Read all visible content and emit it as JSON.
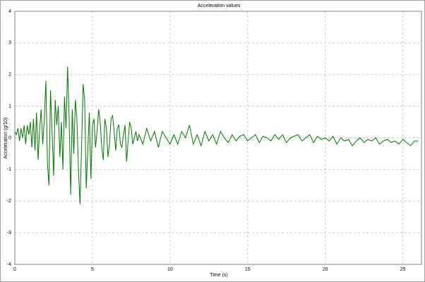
{
  "chart_data": {
    "type": "line",
    "title": "Acceleration values",
    "xlabel": "Time (s)",
    "ylabel": "Acceleration (g/10)",
    "x": [
      0,
      0.1,
      0.2,
      0.3,
      0.4,
      0.5,
      0.6,
      0.7,
      0.8,
      0.9,
      1,
      1.1,
      1.2,
      1.3,
      1.4,
      1.5,
      1.6,
      1.7,
      1.8,
      1.9,
      2,
      2.1,
      2.2,
      2.3,
      2.4,
      2.5,
      2.6,
      2.7,
      2.8,
      2.9,
      3,
      3.1,
      3.2,
      3.3,
      3.4,
      3.5,
      3.6,
      3.7,
      3.8,
      3.9,
      4,
      4.1,
      4.2,
      4.3,
      4.4,
      4.5,
      4.6,
      4.7,
      4.8,
      4.9,
      5,
      5.1,
      5.2,
      5.3,
      5.4,
      5.5,
      5.6,
      5.7,
      5.8,
      5.9,
      6,
      6.1,
      6.2,
      6.3,
      6.4,
      6.5,
      6.6,
      6.7,
      6.8,
      6.9,
      7,
      7.1,
      7.2,
      7.3,
      7.4,
      7.5,
      7.6,
      7.7,
      7.8,
      7.9,
      8,
      8.25,
      8.5,
      8.75,
      9,
      9.25,
      9.5,
      9.75,
      10,
      10.25,
      10.5,
      10.75,
      11,
      11.25,
      11.5,
      11.75,
      12,
      12.25,
      12.5,
      12.75,
      13,
      13.25,
      13.5,
      13.75,
      14,
      14.25,
      14.5,
      14.75,
      15,
      15.25,
      15.5,
      15.75,
      16,
      16.25,
      16.5,
      16.75,
      17,
      17.25,
      17.5,
      17.75,
      18,
      18.25,
      18.5,
      18.75,
      19,
      19.25,
      19.5,
      19.75,
      20,
      20.25,
      20.5,
      20.75,
      21,
      21.25,
      21.5,
      21.75,
      22,
      22.25,
      22.5,
      22.75,
      23,
      23.25,
      23.5,
      23.75,
      24,
      24.25,
      24.5,
      24.75,
      25,
      25.25,
      25.5,
      25.75,
      26
    ],
    "series": [
      {
        "name": "Acceleration",
        "color": "#007800",
        "values": [
          0.2,
          0.1,
          0.3,
          -0.1,
          0.3,
          0.0,
          0.4,
          -0.2,
          0.4,
          0.1,
          0.5,
          -0.3,
          0.6,
          -0.4,
          0.8,
          -0.7,
          0.3,
          0.9,
          -0.2,
          0.6,
          1.8,
          -0.8,
          -1.5,
          1.5,
          0.2,
          -1.2,
          1.2,
          0.4,
          1.0,
          -0.6,
          0.5,
          -1.0,
          1.3,
          0.3,
          2.25,
          0.6,
          -1.8,
          0.9,
          -0.5,
          1.2,
          0.6,
          -1.0,
          -2.1,
          -0.3,
          1.7,
          1.2,
          -1.6,
          -0.4,
          0.8,
          -1.3,
          0.4,
          0.6,
          -0.3,
          0.2,
          0.9,
          0.5,
          -0.3,
          -0.7,
          0.6,
          0.3,
          -0.6,
          -0.2,
          0.6,
          0.7,
          0.2,
          -0.4,
          0.3,
          0.4,
          -0.2,
          -0.3,
          0.1,
          0.4,
          -0.75,
          -0.1,
          0.5,
          0.3,
          -0.2,
          0.0,
          0.2,
          -0.1,
          0.1,
          -0.2,
          0.3,
          -0.1,
          0.2,
          -0.3,
          0.2,
          0.0,
          -0.2,
          0.1,
          -0.2,
          0.2,
          0.0,
          0.4,
          -0.2,
          0.1,
          -0.25,
          0.2,
          -0.1,
          0.1,
          -0.2,
          0.2,
          0.0,
          -0.15,
          0.1,
          -0.1,
          0.05,
          0.1,
          -0.1,
          0.0,
          0.1,
          -0.15,
          0.05,
          0.0,
          -0.1,
          0.1,
          -0.05,
          0.1,
          -0.15,
          0.0,
          0.05,
          0.1,
          -0.1,
          0.0,
          0.1,
          -0.15,
          0.05,
          -0.05,
          0.0,
          -0.1,
          0.05,
          -0.2,
          0.0,
          -0.1,
          -0.05,
          -0.25,
          -0.1,
          0.0,
          -0.15,
          -0.05,
          -0.1,
          0.0,
          -0.2,
          -0.1,
          -0.05,
          -0.15,
          -0.1,
          -0.2,
          -0.05,
          -0.15,
          -0.25,
          -0.1,
          -0.1
        ]
      }
    ],
    "xlim": [
      0,
      26.2
    ],
    "ylim": [
      -4,
      4
    ],
    "xticks": [
      0,
      5,
      10,
      15,
      20,
      25
    ],
    "yticks": [
      -4,
      -3,
      -2,
      -1,
      0,
      1,
      2,
      3,
      4
    ],
    "grid": true
  }
}
